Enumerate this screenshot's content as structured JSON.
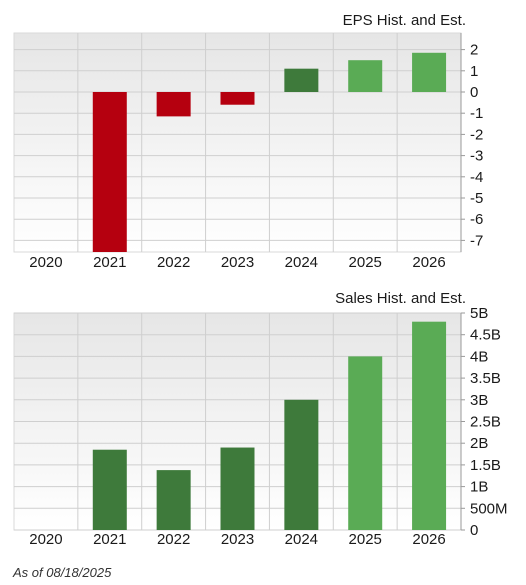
{
  "footer": {
    "as_of": "As of 08/18/2025"
  },
  "colors": {
    "negative": "#b5000f",
    "actual_positive": "#3e7a3b",
    "estimate_positive": "#5aab55",
    "plot_bg_top": "#e9e9e9",
    "plot_bg_bottom": "#ffffff",
    "grid": "#cfcfcf"
  },
  "chart_data": [
    {
      "type": "bar",
      "title": "EPS Hist. and Est.",
      "categories": [
        "2020",
        "2021",
        "2022",
        "2023",
        "2024",
        "2025",
        "2026"
      ],
      "values": [
        null,
        -7.9,
        -1.15,
        -0.6,
        1.1,
        1.5,
        1.85
      ],
      "estimate_from": "2025",
      "ylim": [
        -7.5,
        2.6
      ],
      "yticks": [
        2,
        1,
        0,
        -1,
        -2,
        -3,
        -4,
        -5,
        -6,
        -7
      ],
      "ytick_labels": [
        "2",
        "1",
        "0",
        "-1",
        "-2",
        "-3",
        "-4",
        "-5",
        "-6",
        "-7"
      ],
      "grid": true
    },
    {
      "type": "bar",
      "title": "Sales Hist. and Est.",
      "categories": [
        "2020",
        "2021",
        "2022",
        "2023",
        "2024",
        "2025",
        "2026"
      ],
      "values": [
        null,
        1850000000,
        1380000000,
        1900000000,
        3000000000,
        4000000000,
        4800000000
      ],
      "estimate_from": "2025",
      "ylim": [
        0,
        5000000000
      ],
      "yticks": [
        5000000000,
        4500000000,
        4000000000,
        3500000000,
        3000000000,
        2500000000,
        2000000000,
        1500000000,
        1000000000,
        500000000,
        0
      ],
      "ytick_labels": [
        "5B",
        "4.5B",
        "4B",
        "3.5B",
        "3B",
        "2.5B",
        "2B",
        "1.5B",
        "1B",
        "500M",
        "0"
      ],
      "grid": true
    }
  ]
}
